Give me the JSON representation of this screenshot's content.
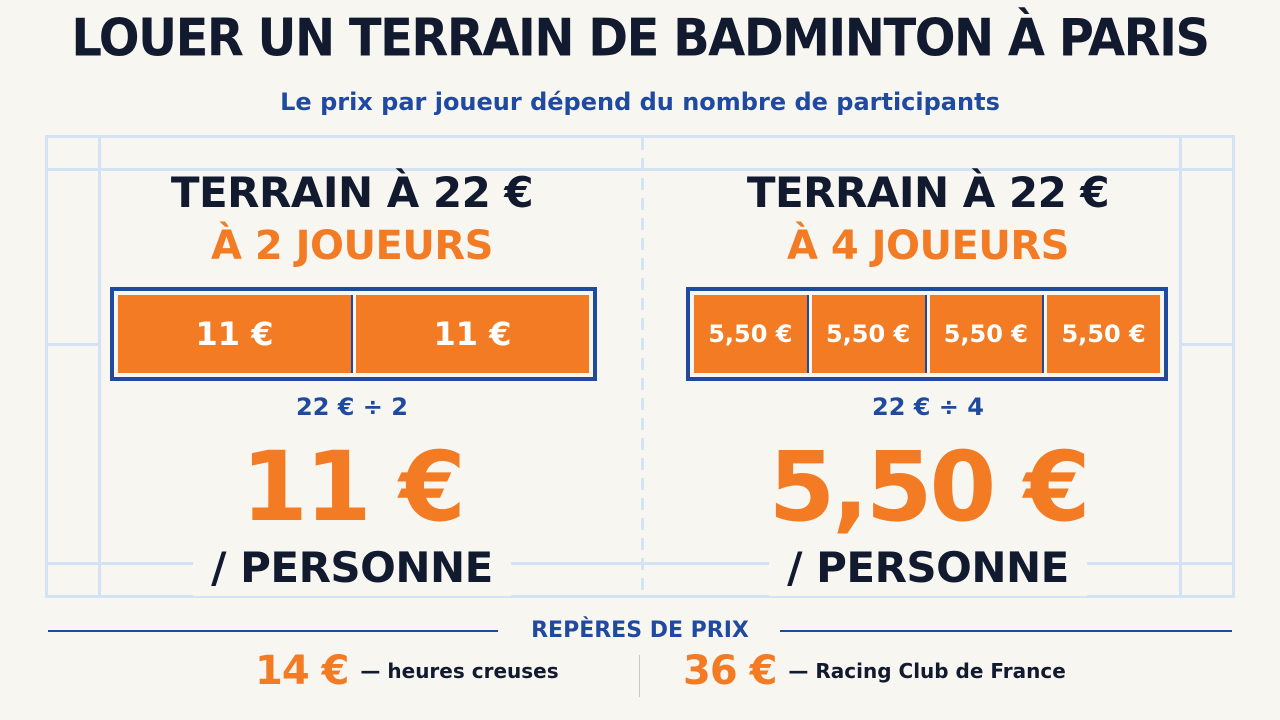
{
  "header": {
    "title": "LOUER UN TERRAIN DE BADMINTON À PARIS",
    "subtitle": "Le prix par joueur dépend du nombre de participants"
  },
  "panels": [
    {
      "terrain": "TERRAIN À 22 €",
      "players": "À 2 JOUEURS",
      "cells": [
        "11 €",
        "11 €"
      ],
      "division": "22 € ÷ 2",
      "price": "11 €",
      "per_person": "/ PERSONNE"
    },
    {
      "terrain": "TERRAIN À 22 €",
      "players": "À 4 JOUEURS",
      "cells": [
        "5,50 €",
        "5,50 €",
        "5,50 €",
        "5,50 €"
      ],
      "division": "22 € ÷ 4",
      "price": "5,50 €",
      "per_person": "/ PERSONNE"
    }
  ],
  "references": {
    "title": "REPÈRES DE PRIX",
    "items": [
      {
        "price": "14 €",
        "desc": "— heures creuses"
      },
      {
        "price": "36 €",
        "desc": "— Racing Club de France"
      }
    ]
  },
  "colors": {
    "navy": "#111a2e",
    "blue": "#1f4aa0",
    "orange": "#f27b24",
    "court_lines": "#d4e2f5",
    "background": "#f7f6f1"
  }
}
